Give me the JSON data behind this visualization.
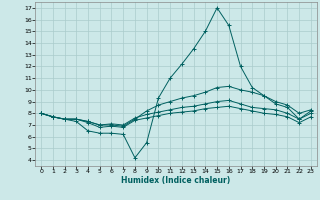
{
  "xlabel": "Humidex (Indice chaleur)",
  "xlim": [
    -0.5,
    23.5
  ],
  "ylim": [
    3.5,
    17.5
  ],
  "xticks": [
    0,
    1,
    2,
    3,
    4,
    5,
    6,
    7,
    8,
    9,
    10,
    11,
    12,
    13,
    14,
    15,
    16,
    17,
    18,
    19,
    20,
    21,
    22,
    23
  ],
  "yticks": [
    4,
    5,
    6,
    7,
    8,
    9,
    10,
    11,
    12,
    13,
    14,
    15,
    16,
    17
  ],
  "background_color": "#cce8e8",
  "grid_color": "#aacccc",
  "line_color": "#006060",
  "lines": [
    [
      8.0,
      7.7,
      7.5,
      7.3,
      6.5,
      6.3,
      6.3,
      6.2,
      4.2,
      5.5,
      9.3,
      11.0,
      12.2,
      13.5,
      15.0,
      17.0,
      15.5,
      12.0,
      10.2,
      9.5,
      8.8,
      8.5,
      7.5,
      8.2
    ],
    [
      8.0,
      7.7,
      7.5,
      7.5,
      7.3,
      7.0,
      7.0,
      6.9,
      7.5,
      8.2,
      8.7,
      9.0,
      9.3,
      9.5,
      9.8,
      10.2,
      10.3,
      10.0,
      9.8,
      9.5,
      9.0,
      8.7,
      8.0,
      8.3
    ],
    [
      8.0,
      7.7,
      7.5,
      7.5,
      7.3,
      7.0,
      7.1,
      7.0,
      7.6,
      7.9,
      8.1,
      8.3,
      8.5,
      8.6,
      8.8,
      9.0,
      9.1,
      8.8,
      8.5,
      8.4,
      8.3,
      8.0,
      7.5,
      8.0
    ],
    [
      8.0,
      7.7,
      7.5,
      7.5,
      7.2,
      6.8,
      6.9,
      6.8,
      7.4,
      7.6,
      7.8,
      8.0,
      8.1,
      8.2,
      8.4,
      8.5,
      8.6,
      8.4,
      8.2,
      8.0,
      7.9,
      7.7,
      7.2,
      7.7
    ]
  ]
}
